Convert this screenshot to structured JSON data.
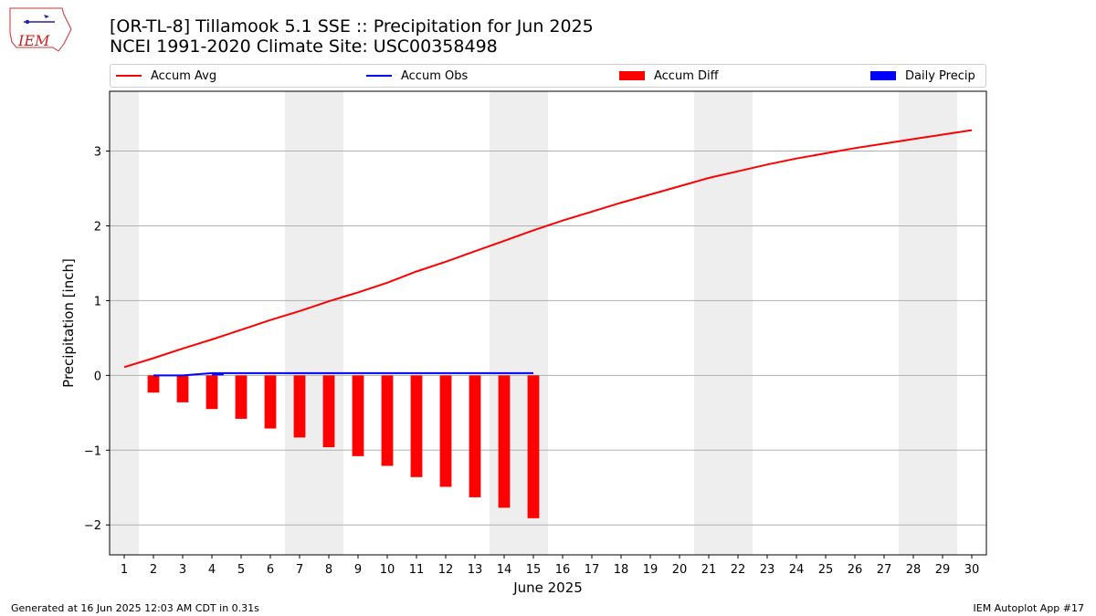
{
  "header": {
    "title_line1": "[OR-TL-8] Tillamook 5.1 SSE :: Precipitation for Jun 2025",
    "title_line2": "NCEI 1991-2020 Climate Site: USC00358498",
    "logo_text": "IEM"
  },
  "legend": {
    "items": [
      {
        "label": "Accum Avg",
        "color": "#ff0000",
        "kind": "line"
      },
      {
        "label": "Accum Obs",
        "color": "#0000ff",
        "kind": "line"
      },
      {
        "label": "Accum Diff",
        "color": "#ff0000",
        "kind": "bar"
      },
      {
        "label": "Daily Precip",
        "color": "#0000ff",
        "kind": "bar"
      }
    ]
  },
  "footer": {
    "generated": "Generated at 16 Jun 2025 12:03 AM CDT in 0.31s",
    "app": "IEM Autoplot App #17"
  },
  "chart_data": {
    "type": "line",
    "title": "",
    "xlabel": "June 2025",
    "ylabel": "Precipitation [inch]",
    "xlim": [
      0.5,
      30.5
    ],
    "ylim": [
      -2.4,
      3.8
    ],
    "x_ticks": [
      1,
      2,
      3,
      4,
      5,
      6,
      7,
      8,
      9,
      10,
      11,
      12,
      13,
      14,
      15,
      16,
      17,
      18,
      19,
      20,
      21,
      22,
      23,
      24,
      25,
      26,
      27,
      28,
      29,
      30
    ],
    "y_ticks": [
      -2,
      -1,
      0,
      1,
      2,
      3
    ],
    "y_tick_labels": [
      "−2",
      "−1",
      "0",
      "1",
      "2",
      "3"
    ],
    "grid": "horizontal",
    "legend_position": "top",
    "weekend_shading": [
      [
        0.5,
        1.5
      ],
      [
        6.5,
        8.5
      ],
      [
        13.5,
        15.5
      ],
      [
        20.5,
        22.5
      ],
      [
        27.5,
        29.5
      ]
    ],
    "series": [
      {
        "name": "Accum Avg",
        "kind": "line",
        "color": "#ff0000",
        "x": [
          1,
          2,
          3,
          4,
          5,
          6,
          7,
          8,
          9,
          10,
          11,
          12,
          13,
          14,
          15,
          16,
          17,
          18,
          19,
          20,
          21,
          22,
          23,
          24,
          25,
          26,
          27,
          28,
          29,
          30
        ],
        "values": [
          0.11,
          0.23,
          0.36,
          0.48,
          0.61,
          0.74,
          0.86,
          0.99,
          1.11,
          1.24,
          1.39,
          1.52,
          1.66,
          1.8,
          1.94,
          2.07,
          2.19,
          2.31,
          2.42,
          2.53,
          2.64,
          2.73,
          2.82,
          2.9,
          2.97,
          3.04,
          3.1,
          3.16,
          3.22,
          3.28
        ]
      },
      {
        "name": "Accum Obs",
        "kind": "line",
        "color": "#0000ff",
        "x": [
          2,
          3,
          4,
          5,
          6,
          7,
          8,
          9,
          10,
          11,
          12,
          13,
          14,
          15
        ],
        "values": [
          0.0,
          0.0,
          0.03,
          0.03,
          0.03,
          0.03,
          0.03,
          0.03,
          0.03,
          0.03,
          0.03,
          0.03,
          0.03,
          0.03
        ]
      },
      {
        "name": "Accum Diff",
        "kind": "bar",
        "color": "#ff0000",
        "x": [
          2,
          3,
          4,
          5,
          6,
          7,
          8,
          9,
          10,
          11,
          12,
          13,
          14,
          15
        ],
        "values": [
          -0.23,
          -0.36,
          -0.45,
          -0.58,
          -0.71,
          -0.83,
          -0.96,
          -1.08,
          -1.21,
          -1.36,
          -1.49,
          -1.63,
          -1.77,
          -1.91
        ]
      },
      {
        "name": "Daily Precip",
        "kind": "bar",
        "color": "#0000ff",
        "x": [
          4
        ],
        "values": [
          0.03
        ]
      }
    ]
  }
}
